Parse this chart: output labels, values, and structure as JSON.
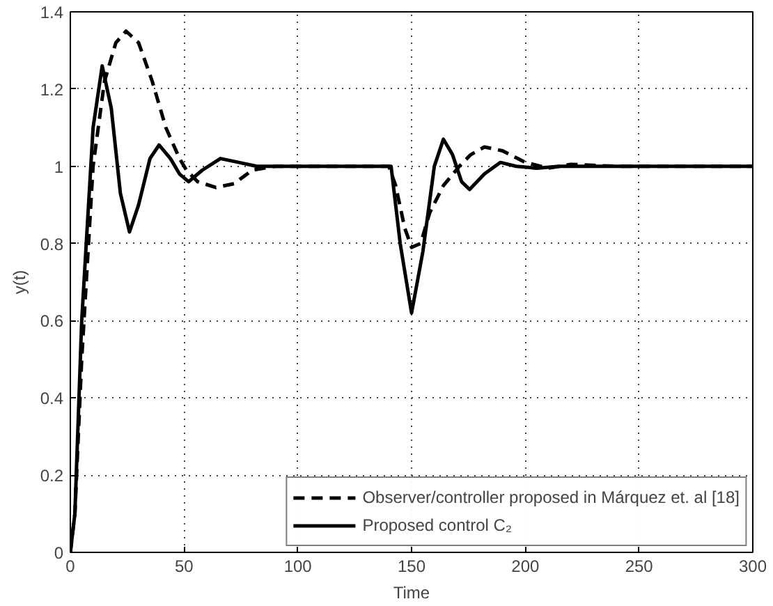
{
  "chart_data": {
    "type": "line",
    "xlabel": "Time",
    "ylabel": "y(t)",
    "xlim": [
      0,
      300
    ],
    "ylim": [
      0,
      1.4
    ],
    "xticks": [
      0,
      50,
      100,
      150,
      200,
      250,
      300
    ],
    "yticks": [
      0,
      0.2,
      0.4,
      0.6,
      0.8,
      1,
      1.2,
      1.4
    ],
    "grid": true,
    "legend": "bottom right",
    "series": [
      {
        "name": "Observer/controller proposed in Márquez et. al [18]",
        "color": "#000000",
        "line_style": "dashed",
        "x": [
          0,
          2,
          5,
          10,
          15,
          20,
          24.5,
          30,
          36,
          42,
          48,
          51,
          56,
          64,
          72,
          80,
          90,
          100,
          140,
          143,
          147,
          150,
          154,
          158,
          164,
          171,
          176,
          182,
          190,
          200,
          210,
          220,
          240,
          270,
          300
        ],
        "values": [
          0,
          0.1,
          0.5,
          1.0,
          1.22,
          1.32,
          1.35,
          1.32,
          1.22,
          1.1,
          1.02,
          0.99,
          0.96,
          0.945,
          0.955,
          0.99,
          1.0,
          1.0,
          1.0,
          0.95,
          0.84,
          0.79,
          0.8,
          0.88,
          0.95,
          1.0,
          1.03,
          1.05,
          1.04,
          1.01,
          0.995,
          1.005,
          1.0,
          1.0,
          1.0
        ]
      },
      {
        "name": "Proposed control C₂",
        "color": "#000000",
        "line_style": "solid",
        "x": [
          0,
          2,
          5,
          10,
          14,
          18,
          22,
          26,
          30,
          35,
          39,
          44,
          48,
          52,
          58,
          66,
          74,
          82,
          90,
          100,
          141,
          145,
          150,
          155,
          160,
          164,
          168,
          172,
          175.5,
          182,
          189,
          196,
          205,
          215,
          240,
          270,
          300
        ],
        "values": [
          0,
          0.1,
          0.6,
          1.1,
          1.26,
          1.15,
          0.93,
          0.83,
          0.9,
          1.02,
          1.055,
          1.02,
          0.98,
          0.96,
          0.99,
          1.02,
          1.01,
          1.0,
          1.0,
          1.0,
          1.0,
          0.8,
          0.62,
          0.78,
          1.0,
          1.07,
          1.03,
          0.96,
          0.94,
          0.98,
          1.01,
          1.0,
          0.995,
          1.0,
          1.0,
          1.0,
          1.0
        ]
      }
    ]
  }
}
